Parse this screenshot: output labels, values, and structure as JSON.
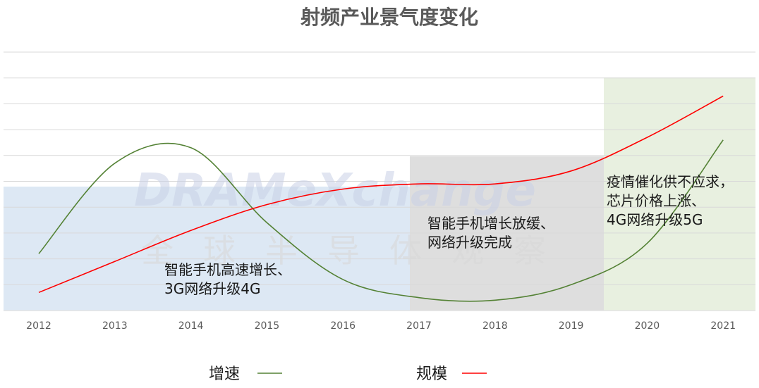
{
  "chart_data": {
    "type": "line",
    "title": "射频产业景气度变化",
    "categories": [
      "2012",
      "2013",
      "2014",
      "2015",
      "2016",
      "2017",
      "2018",
      "2019",
      "2020",
      "2021"
    ],
    "series": [
      {
        "name": "增速",
        "color": "#548235",
        "values": [
          0.22,
          0.57,
          0.63,
          0.34,
          0.12,
          0.05,
          0.04,
          0.1,
          0.26,
          0.66
        ]
      },
      {
        "name": "规模",
        "color": "#ff0000",
        "values": [
          0.07,
          0.19,
          0.31,
          0.41,
          0.47,
          0.49,
          0.49,
          0.54,
          0.67,
          0.83
        ]
      }
    ],
    "ylim": [
      0,
      1
    ],
    "grid": true,
    "legend_position": "bottom",
    "shaded_periods": [
      {
        "from": "2012",
        "to": "2016",
        "color": "#dde8f4",
        "annotation": [
          "智能手机高速增长、",
          "3G网络升级4G"
        ]
      },
      {
        "from": "2017",
        "to": "2019",
        "color": "#dedede",
        "annotation": [
          "智能手机增长放缓、",
          "网络升级完成"
        ]
      },
      {
        "from": "2020",
        "to": "2021",
        "color": "#e8f0e0",
        "annotation": [
          "疫情催化供不应求，",
          "芯片价格上涨、",
          "4G网络升级5G"
        ]
      }
    ],
    "watermark": {
      "line1": "DRAMeXchange",
      "line2": "全球半导体观察"
    }
  }
}
